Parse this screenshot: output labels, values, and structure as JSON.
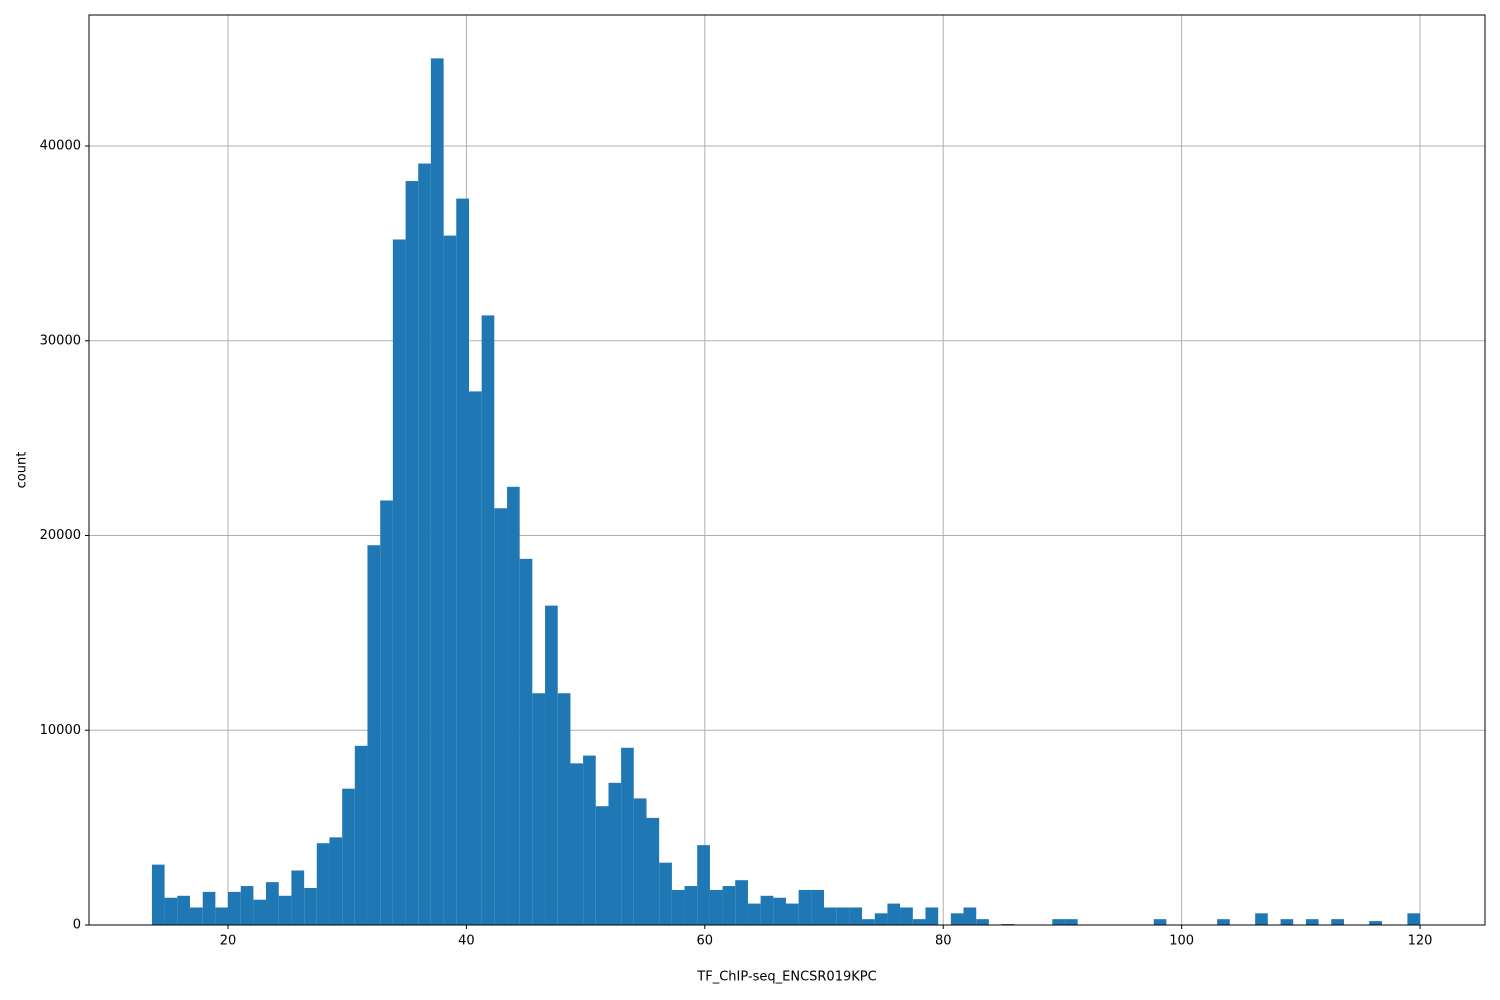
{
  "chart_data": {
    "type": "histogram",
    "x_label": "TF_ChIP-seq_ENCSR019KPC",
    "y_label": "count",
    "color": "#1f77b4",
    "grid": true,
    "bins": [
      13.62,
      14.68,
      15.75,
      16.81,
      17.88,
      18.94,
      20.0,
      21.07,
      22.13,
      23.19,
      24.26,
      25.32,
      26.39,
      27.45,
      28.51,
      29.58,
      30.64,
      31.7,
      32.77,
      33.83,
      34.9,
      35.96,
      37.02,
      38.09,
      39.15,
      40.22,
      41.28,
      42.34,
      43.41,
      44.47,
      45.53,
      46.6,
      47.66,
      48.73,
      49.79,
      50.85,
      51.92,
      52.98,
      54.04,
      55.11,
      56.17,
      57.24,
      58.3,
      59.36,
      60.43,
      61.49,
      62.55,
      63.62,
      64.68,
      65.75,
      66.81,
      67.87,
      68.94,
      70.0,
      71.07,
      72.13,
      73.19,
      74.26,
      75.32,
      76.38,
      77.45,
      78.51,
      79.58,
      80.64,
      81.7,
      82.77,
      83.83,
      84.89,
      85.96,
      87.02,
      88.09,
      89.15,
      90.21,
      91.28,
      92.34,
      93.4,
      94.47,
      95.53,
      96.6,
      97.66,
      98.72,
      99.79,
      100.85,
      101.92,
      102.98,
      104.04,
      105.11,
      106.17,
      107.23,
      108.3,
      109.36,
      110.43,
      111.49,
      112.55,
      113.62,
      114.68,
      115.74,
      116.81,
      117.87,
      118.94,
      120.0
    ],
    "values": [
      3100,
      1400,
      1500,
      900,
      1700,
      900,
      1700,
      2000,
      1300,
      2200,
      1500,
      2800,
      1900,
      4200,
      4500,
      7000,
      9200,
      19500,
      21800,
      35200,
      38200,
      39100,
      44500,
      35400,
      37300,
      27400,
      31300,
      21400,
      22500,
      18800,
      11900,
      16400,
      11900,
      8300,
      8700,
      6100,
      7300,
      9100,
      6500,
      5500,
      3200,
      1800,
      2000,
      4100,
      1800,
      2000,
      2300,
      1100,
      1500,
      1400,
      1100,
      1800,
      1800,
      900,
      900,
      900,
      300,
      600,
      1100,
      900,
      300,
      900,
      0,
      600,
      900,
      300,
      0,
      50,
      0,
      0,
      0,
      300,
      300,
      0,
      0,
      0,
      0,
      0,
      0,
      300,
      0,
      0,
      0,
      0,
      300,
      0,
      0,
      600,
      0,
      300,
      0,
      300,
      0,
      300,
      0,
      0,
      200,
      0,
      0,
      600
    ],
    "xlim": [
      8.34,
      125.45
    ],
    "ylim": [
      0,
      46727
    ],
    "xticks": [
      20,
      40,
      60,
      80,
      100,
      120
    ],
    "yticks": [
      0,
      10000,
      20000,
      30000,
      40000
    ]
  }
}
